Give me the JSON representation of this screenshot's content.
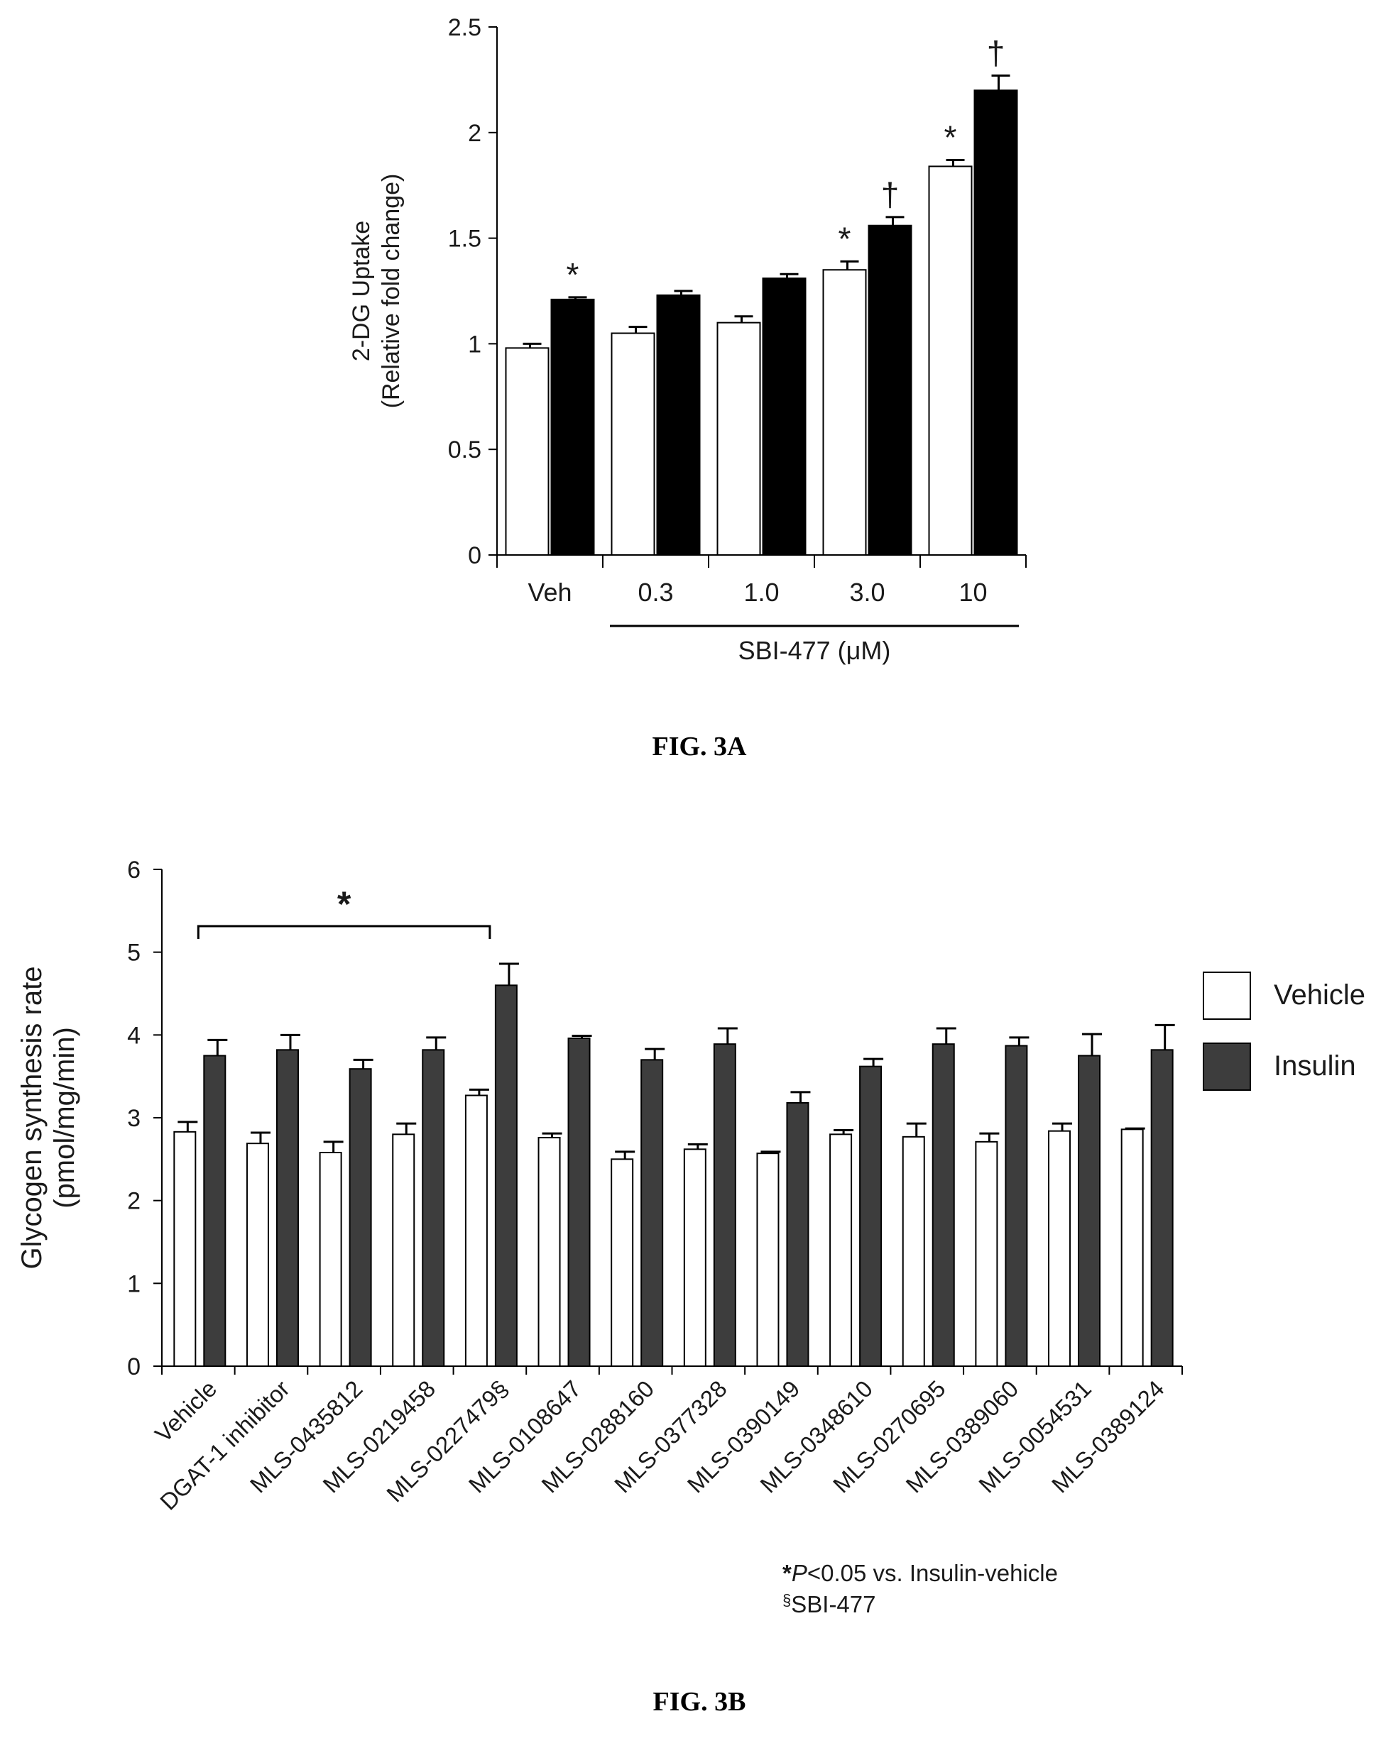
{
  "chart_data": [
    {
      "type": "bar",
      "ylabel_line1": "2-DG Uptake",
      "ylabel_line2": "(Relative fold change)",
      "ylim": [
        0,
        2.5
      ],
      "yticks": [
        "0",
        "0.5",
        "1",
        "1.5",
        "2",
        "2.5"
      ],
      "ytick_values": [
        0,
        0.5,
        1,
        1.5,
        2,
        2.5
      ],
      "categories": [
        "Veh",
        "0.3",
        "1.0",
        "3.0",
        "10"
      ],
      "group_label": "SBI-477 (μM)",
      "series": [
        {
          "values": [
            0.98,
            1.05,
            1.1,
            1.35,
            1.84
          ],
          "errors": [
            0.02,
            0.03,
            0.03,
            0.04,
            0.03
          ],
          "fill": "#ffffff",
          "marks": [
            "",
            "",
            "",
            "*",
            "*"
          ]
        },
        {
          "values": [
            1.21,
            1.23,
            1.31,
            1.56,
            2.2
          ],
          "errors": [
            0.01,
            0.02,
            0.02,
            0.04,
            0.07
          ],
          "fill": "#000000",
          "marks": [
            "*",
            "",
            "",
            "†",
            "†"
          ]
        }
      ],
      "grid": false,
      "caption": "FIG. 3A"
    },
    {
      "type": "bar",
      "ylabel_line1": "Glycogen synthesis rate",
      "ylabel_line2": "(pmol/mg/min)",
      "ylim": [
        0,
        6
      ],
      "yticks": [
        "0",
        "1",
        "2",
        "3",
        "4",
        "5",
        "6"
      ],
      "ytick_values": [
        0,
        1,
        2,
        3,
        4,
        5,
        6
      ],
      "categories": [
        "Vehicle",
        "DGAT-1 inhibitor",
        "MLS-0435812",
        "MLS-0219458",
        "MLS-0227479§",
        "MLS-0108647",
        "MLS-0288160",
        "MLS-0377328",
        "MLS-0390149",
        "MLS-0348610",
        "MLS-0270695",
        "MLS-0389060",
        "MLS-0054531",
        "MLS-0389124"
      ],
      "series": [
        {
          "name": "Vehicle",
          "fill": "#ffffff",
          "values": [
            2.83,
            2.69,
            2.58,
            2.8,
            3.27,
            2.76,
            2.5,
            2.62,
            2.57,
            2.8,
            2.77,
            2.71,
            2.84,
            2.86
          ],
          "errors": [
            0.12,
            0.13,
            0.13,
            0.13,
            0.07,
            0.05,
            0.09,
            0.06,
            0.02,
            0.05,
            0.16,
            0.1,
            0.09,
            0.01
          ]
        },
        {
          "name": "Insulin",
          "fill": "#3d3d3d",
          "values": [
            3.75,
            3.82,
            3.59,
            3.82,
            4.6,
            3.96,
            3.7,
            3.89,
            3.18,
            3.62,
            3.89,
            3.87,
            3.75,
            3.82
          ],
          "errors": [
            0.19,
            0.18,
            0.11,
            0.15,
            0.26,
            0.03,
            0.13,
            0.19,
            0.13,
            0.09,
            0.19,
            0.1,
            0.26,
            0.3
          ]
        }
      ],
      "bracket_mark": "*",
      "footnote_line1_star": "*",
      "footnote_line1_p": "P",
      "footnote_line1_rest": "<0.05 vs. Insulin-vehicle",
      "footnote_line2_mark": "§",
      "footnote_line2_text": "SBI-477",
      "legend_position": "right",
      "grid": false,
      "caption": "FIG. 3B"
    }
  ]
}
